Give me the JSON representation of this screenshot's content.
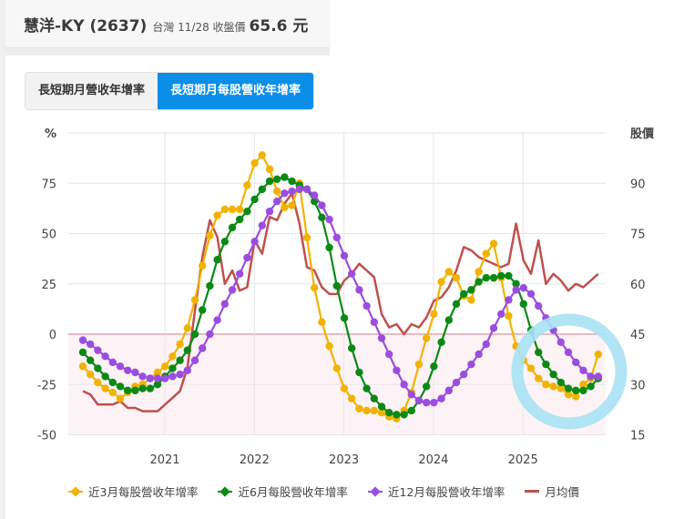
{
  "header": {
    "stock_name": "慧洋-KY (2637)",
    "market_date": "台灣 11/28 收盤價",
    "close_price": "65.6 元"
  },
  "tabs": [
    {
      "label": "長短期月營收年增率",
      "active": false
    },
    {
      "label": "長短期月每股營收年增率",
      "active": true
    }
  ],
  "colors": {
    "accent": "#0a8ee8",
    "series_3m": "#f2b200",
    "series_6m": "#0a8a14",
    "series_12m": "#9b4de0",
    "price": "#c0504d",
    "highlight_circle": "#a8e2f5",
    "zero_line": "#d9a7b0"
  },
  "chart_data": {
    "type": "line",
    "title": "",
    "xlabel": "",
    "ylabel": "%",
    "ylabel_right": "股價",
    "ylim": [
      -50,
      100
    ],
    "ylim_right": [
      15,
      105
    ],
    "yticks_left": [
      "%",
      "75",
      "50",
      "25",
      "0",
      "-25",
      "-50"
    ],
    "yticks_right": [
      "股價",
      "90",
      "75",
      "60",
      "45",
      "30",
      "15"
    ],
    "xticks": [
      "2021",
      "2022",
      "2023",
      "2024",
      "2025"
    ],
    "x_start": "2020-02",
    "x_end": "2025-11",
    "grid": true,
    "legend_position": "bottom",
    "series": [
      {
        "name": "近3月每股營收年增率",
        "axis": "left",
        "marker": "circle",
        "values": [
          -16,
          -20,
          -24,
          -27,
          -29,
          -32,
          -29,
          -26,
          -25,
          -22,
          -19,
          -16,
          -11,
          -5,
          3,
          17,
          34,
          49,
          59,
          62,
          62,
          62,
          74,
          85,
          89,
          82,
          71,
          63,
          64,
          75,
          48,
          23,
          6,
          -6,
          -17,
          -27,
          -32,
          -37,
          -38,
          -38,
          -39,
          -41,
          -42,
          -38,
          -29,
          -15,
          -2,
          10,
          26,
          31,
          28,
          19,
          17,
          31,
          40,
          45,
          28,
          9,
          -6,
          -13,
          -17,
          -22,
          -25,
          -26,
          -27,
          -30,
          -31,
          -25,
          -22,
          -10
        ]
      },
      {
        "name": "近6月每股營收年增率",
        "axis": "left",
        "marker": "circle",
        "values": [
          -9,
          -13,
          -17,
          -21,
          -24,
          -26,
          -28,
          -28,
          -27,
          -27,
          -25,
          -21,
          -17,
          -13,
          -8,
          0,
          12,
          24,
          37,
          46,
          53,
          57,
          61,
          67,
          72,
          76,
          77,
          78,
          76,
          74,
          72,
          66,
          58,
          43,
          24,
          8,
          -7,
          -19,
          -27,
          -32,
          -36,
          -39,
          -40,
          -40,
          -38,
          -33,
          -26,
          -16,
          -4,
          7,
          15,
          20,
          22,
          26,
          28,
          28,
          29,
          29,
          25,
          15,
          2,
          -9,
          -15,
          -20,
          -24,
          -27,
          -28,
          -28,
          -26,
          -22
        ]
      },
      {
        "name": "近12月每股營收年增率",
        "axis": "left",
        "marker": "circle",
        "values": [
          -3,
          -5,
          -8,
          -11,
          -14,
          -16,
          -18,
          -19,
          -21,
          -22,
          -22,
          -22,
          -21,
          -20,
          -18,
          -13,
          -7,
          0,
          7,
          15,
          22,
          30,
          38,
          46,
          54,
          61,
          66,
          70,
          71,
          72,
          72,
          69,
          64,
          57,
          48,
          39,
          30,
          22,
          14,
          6,
          -2,
          -10,
          -18,
          -25,
          -30,
          -33,
          -34,
          -34,
          -32,
          -28,
          -24,
          -20,
          -15,
          -10,
          -5,
          3,
          10,
          17,
          22,
          23,
          20,
          14,
          8,
          2,
          -4,
          -9,
          -14,
          -18,
          -21,
          -21
        ]
      },
      {
        "name": "月均價",
        "axis": "right",
        "marker": "none",
        "values": [
          28,
          27,
          24,
          24,
          24,
          25,
          23,
          23,
          22,
          22,
          22,
          24,
          26,
          28,
          35,
          52,
          68,
          79,
          74,
          60,
          64,
          58,
          59,
          73,
          69,
          80,
          79,
          84,
          87,
          78,
          65,
          64,
          59,
          57,
          57,
          61,
          63,
          66,
          64,
          62,
          51,
          47,
          48,
          45,
          48,
          47,
          50,
          55,
          56,
          59,
          64,
          71,
          70,
          68,
          67,
          66,
          65,
          66,
          78,
          67,
          63,
          73,
          60,
          63,
          61,
          58,
          60,
          59,
          61,
          63
        ]
      }
    ],
    "annotations": [
      "light-blue circle highlighting 2025 trough / rebound"
    ]
  },
  "legend": {
    "items": [
      {
        "label": "近3月每股營收年增率"
      },
      {
        "label": "近6月每股營收年增率"
      },
      {
        "label": "近12月每股營收年增率"
      },
      {
        "label": "月均價"
      }
    ]
  }
}
